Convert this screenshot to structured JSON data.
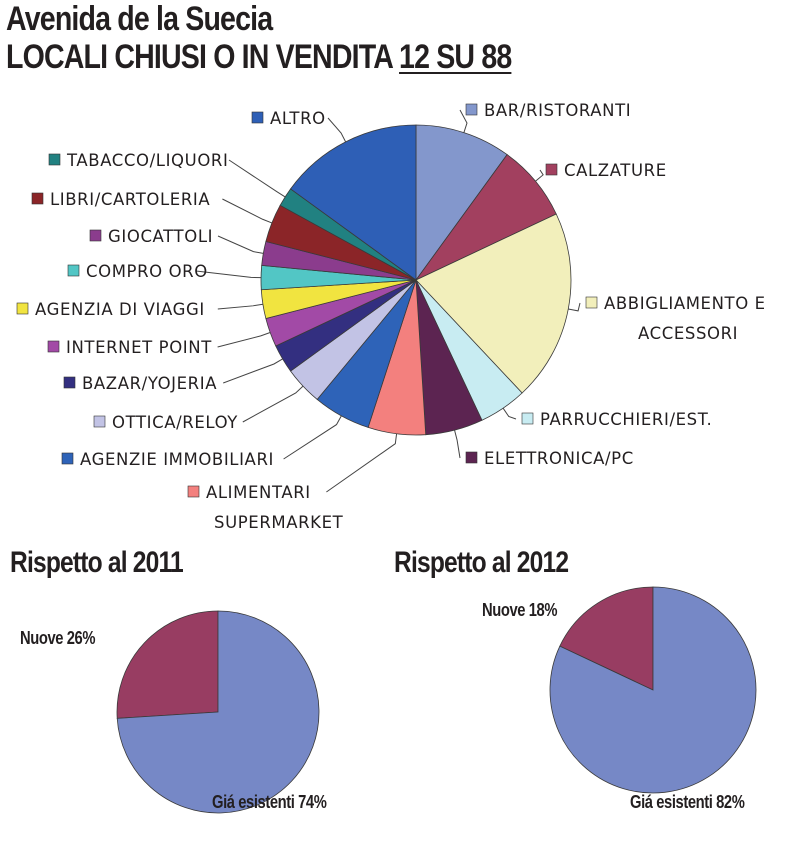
{
  "title_line1": "Avenida de la Suecia",
  "title_line2_prefix": "LOCALI CHIUSI O IN VENDITA ",
  "title_line2_highlight": "12 SU 88",
  "chart_data": [
    {
      "type": "pie",
      "title": "",
      "categories": [
        "BAR/RISTORANTI",
        "CALZATURE",
        "ABBIGLIAMENTO E ACCESSORI",
        "PARRUCCHIERI/EST.",
        "ELETTRONICA/PC",
        "ALIMENTARI SUPERMARKET",
        "AGENZIE IMMOBILIARI",
        "OTTICA/RELOY",
        "BAZAR/YOJERIA",
        "INTERNET POINT",
        "AGENZIA DI VIAGGI",
        "COMPRO ORO",
        "GIOCATTOLI",
        "LIBRI/CARTOLERIA",
        "TABACCO/LIQUORI",
        "ALTRO"
      ],
      "values": [
        10,
        8,
        20,
        5,
        6,
        6,
        6,
        4,
        3,
        3,
        3,
        2.5,
        2.5,
        4,
        2,
        15
      ],
      "colors": [
        "#8397cc",
        "#a2405f",
        "#f2efbb",
        "#c8ecf2",
        "#5c2451",
        "#f3807e",
        "#2e63b8",
        "#c2c3e5",
        "#332f80",
        "#a24aa6",
        "#f1e440",
        "#52c6c5",
        "#8b3c8d",
        "#8b2528",
        "#218181",
        "#2e5fb6"
      ],
      "legend_rows": [
        [
          "BAR/RISTORANTI"
        ],
        [
          "CALZATURE"
        ],
        [
          "ABBIGLIAMENTO E",
          "ACCESSORI"
        ],
        [
          "PARRUCCHIERI/EST."
        ],
        [
          "ELETTRONICA/PC"
        ],
        [
          "ALIMENTARI",
          "SUPERMARKET"
        ],
        [
          "AGENZIE IMMOBILIARI"
        ],
        [
          "OTTICA/RELOY"
        ],
        [
          "BAZAR/YOJERIA"
        ],
        [
          "INTERNET POINT"
        ],
        [
          "AGENZIA DI VIAGGI"
        ],
        [
          "COMPRO ORO"
        ],
        [
          "GIOCATTOLI"
        ],
        [
          "LIBRI/CARTOLERIA"
        ],
        [
          "TABACCO/LIQUORI"
        ],
        [
          "ALTRO"
        ]
      ]
    },
    {
      "type": "pie",
      "title": "Rispetto al 2011",
      "categories": [
        "Nuove",
        "Giá esistenti"
      ],
      "values": [
        26,
        74
      ],
      "labels": [
        "Nuove 26%",
        "Giá esistenti  74%"
      ],
      "colors": [
        "#983d62",
        "#7688c6"
      ]
    },
    {
      "type": "pie",
      "title": "Rispetto al 2012",
      "categories": [
        "Nuove",
        "Giá esistenti"
      ],
      "values": [
        18,
        82
      ],
      "labels": [
        "Nuove 18%",
        "Giá esistenti  82%"
      ],
      "colors": [
        "#983d62",
        "#7688c6"
      ]
    }
  ]
}
